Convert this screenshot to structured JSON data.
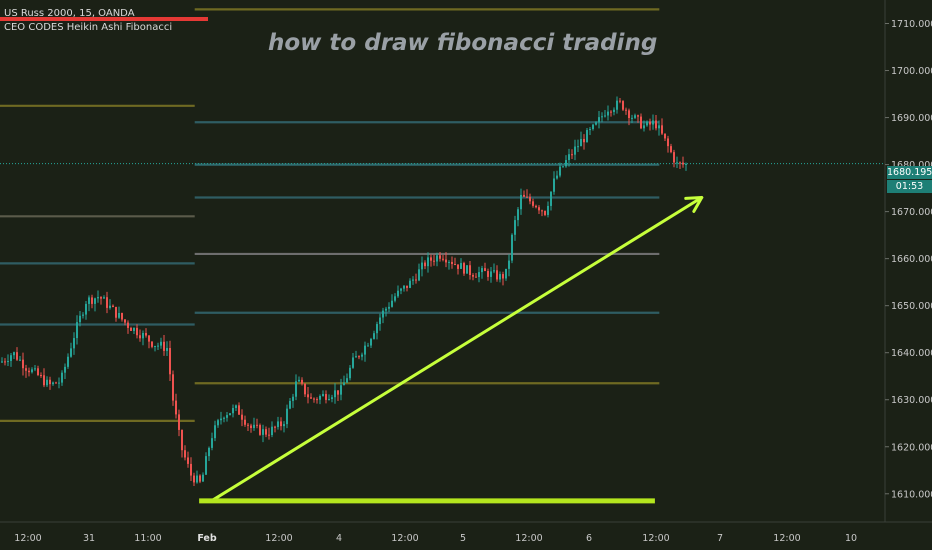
{
  "header": {
    "symbol_line": "US Russ 2000, 15, OANDA",
    "indicator_line": "CEO CODES Heikin Ashi Fibonacci"
  },
  "annotation": {
    "title": "how to draw fibonacci trading"
  },
  "price_badge": {
    "price": "1680.195",
    "countdown": "01:53"
  },
  "colors": {
    "background": "#1b2116",
    "up_candle": "#26a69a",
    "down_candle": "#ef5350",
    "arrow": "#c6ff3b",
    "baseline": "#b4e61e",
    "badge": "#1e7f76",
    "red_marker": "#e53935"
  },
  "chart_data": {
    "type": "candlestick",
    "title": "how to draw fibonacci trading",
    "y_axis": {
      "ylim": [
        1604,
        1715
      ],
      "tick_labels": [
        "1710.000",
        "1700.000",
        "1690.000",
        "1680.000",
        "1670.000",
        "1660.000",
        "1650.000",
        "1640.000",
        "1630.000",
        "1620.000",
        "1610.000"
      ],
      "tick_values": [
        1710,
        1700,
        1690,
        1680,
        1670,
        1660,
        1650,
        1640,
        1630,
        1620,
        1610
      ],
      "position": "right"
    },
    "x_axis": {
      "tick_labels": [
        "12:00",
        "31",
        "11:00",
        "Feb",
        "12:00",
        "4",
        "12:00",
        "5",
        "12:00",
        "6",
        "12:00",
        "7",
        "12:00",
        "10"
      ]
    },
    "grid": false,
    "price_path": [
      [
        0,
        1638
      ],
      [
        12,
        1640
      ],
      [
        25,
        1637
      ],
      [
        38,
        1635
      ],
      [
        48,
        1633
      ],
      [
        60,
        1634
      ],
      [
        72,
        1643
      ],
      [
        85,
        1651
      ],
      [
        98,
        1652
      ],
      [
        112,
        1649
      ],
      [
        126,
        1646
      ],
      [
        140,
        1644
      ],
      [
        152,
        1642
      ],
      [
        166,
        1641
      ],
      [
        172,
        1630
      ],
      [
        180,
        1620
      ],
      [
        190,
        1614
      ],
      [
        200,
        1612
      ],
      [
        210,
        1622
      ],
      [
        222,
        1627
      ],
      [
        236,
        1628
      ],
      [
        250,
        1624
      ],
      [
        266,
        1623
      ],
      [
        282,
        1625
      ],
      [
        296,
        1634
      ],
      [
        310,
        1630
      ],
      [
        324,
        1631
      ],
      [
        340,
        1632
      ],
      [
        352,
        1638
      ],
      [
        366,
        1642
      ],
      [
        380,
        1648
      ],
      [
        394,
        1652
      ],
      [
        410,
        1655
      ],
      [
        424,
        1659
      ],
      [
        440,
        1661
      ],
      [
        454,
        1659
      ],
      [
        470,
        1657
      ],
      [
        486,
        1657
      ],
      [
        500,
        1656
      ],
      [
        506,
        1657
      ],
      [
        512,
        1666
      ],
      [
        520,
        1673
      ],
      [
        532,
        1672
      ],
      [
        544,
        1670
      ],
      [
        554,
        1677
      ],
      [
        566,
        1681
      ],
      [
        580,
        1685
      ],
      [
        594,
        1688
      ],
      [
        606,
        1692
      ],
      [
        620,
        1693
      ],
      [
        632,
        1690
      ],
      [
        644,
        1688
      ],
      [
        654,
        1689
      ],
      [
        664,
        1685
      ],
      [
        676,
        1680
      ],
      [
        686,
        1680
      ]
    ],
    "fib_levels": [
      {
        "value": 1713,
        "start": 0.22,
        "color": "#6f6a22"
      },
      {
        "value": 1692.5,
        "start": 0.0,
        "end": 0.22,
        "color": "#6f6a22"
      },
      {
        "value": 1689,
        "start": 0.22,
        "color": "#2f5d63"
      },
      {
        "value": 1680,
        "start": 0.22,
        "color": "#2f6a6e"
      },
      {
        "value": 1673,
        "start": 0.22,
        "color": "#2f5d63"
      },
      {
        "value": 1669,
        "start": 0.0,
        "end": 0.22,
        "color": "#5b5b4a"
      },
      {
        "value": 1661,
        "start": 0.22,
        "color": "#6e6e6e"
      },
      {
        "value": 1659,
        "start": 0.0,
        "end": 0.22,
        "color": "#2f5d63"
      },
      {
        "value": 1648.5,
        "start": 0.22,
        "color": "#2f5d63"
      },
      {
        "value": 1646,
        "start": 0.0,
        "end": 0.22,
        "color": "#2f5d63"
      },
      {
        "value": 1633.5,
        "start": 0.22,
        "color": "#6f6a22"
      },
      {
        "value": 1625.5,
        "start": 0.0,
        "end": 0.22,
        "color": "#6f6a22"
      }
    ],
    "current_price": 1680.195,
    "annotations": [
      {
        "type": "arrow",
        "from": [
          1608.5,
          0.23
        ],
        "to": [
          1673,
          0.75
        ]
      },
      {
        "type": "hline",
        "value": 1608.5,
        "from": 0.225,
        "to": 0.74
      }
    ]
  }
}
